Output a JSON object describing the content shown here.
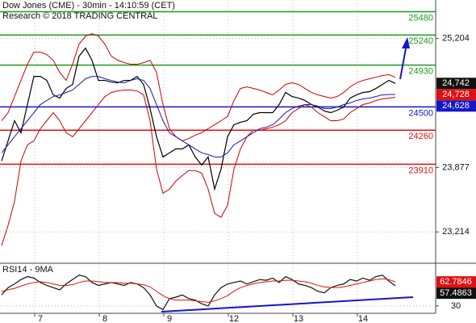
{
  "chart_data": [
    {
      "type": "line",
      "title": "Dow Jones (CME) - 30min - 14:10:59 (CET)",
      "subtitle": "Research © 2018 TRADING CENTRAL",
      "categories": [
        null,
        null,
        null,
        null,
        null,
        null,
        "7",
        null,
        null,
        null,
        null,
        null,
        null,
        null,
        null,
        null,
        "8",
        null,
        null,
        null,
        null,
        null,
        null,
        null,
        null,
        null,
        "9",
        null,
        null,
        null,
        null,
        null,
        null,
        null,
        null,
        null,
        "12",
        null,
        null,
        null,
        null,
        null,
        null,
        null,
        null,
        null,
        "13",
        null,
        null,
        null,
        null,
        null,
        null,
        null,
        null,
        null,
        "14",
        null,
        null,
        null,
        null,
        null
      ],
      "series": [
        {
          "color": "#000000",
          "values": [
            23944,
            24151,
            24358,
            24234,
            24524,
            24814,
            24814,
            24773,
            24624,
            24591,
            24690,
            24731,
            25022,
            25105,
            24980,
            24773,
            24773,
            24756,
            24748,
            24773,
            24773,
            24814,
            24731,
            24483,
            24193,
            23985,
            24027,
            24068,
            24068,
            24110,
            23985,
            23902,
            23985,
            23654,
            23861,
            24193,
            24317,
            24342,
            24358,
            24425,
            24441,
            24441,
            24441,
            24524,
            24649,
            24607,
            24591,
            24566,
            24524,
            24499,
            24458,
            24441,
            24466,
            24499,
            24591,
            24624,
            24649,
            24657,
            24690,
            24731,
            24773,
            24742
          ]
        },
        {
          "color": "#cc0000",
          "values": [
            24358,
            24441,
            24607,
            24773,
            24939,
            25063,
            25063,
            25038,
            24980,
            24856,
            24773,
            24939,
            25146,
            25229,
            25254,
            25229,
            25146,
            25022,
            24980,
            24955,
            24939,
            24939,
            24955,
            24980,
            24856,
            24524,
            24276,
            24193,
            24151,
            24176,
            24209,
            24234,
            24276,
            24317,
            24358,
            24400,
            24566,
            24690,
            24707,
            24690,
            24674,
            24649,
            24624,
            24674,
            24732,
            24748,
            24732,
            24690,
            24649,
            24624,
            24607,
            24591,
            24607,
            24649,
            24707,
            24748,
            24773,
            24790,
            24806,
            24823,
            24831,
            24806
          ]
        },
        {
          "color": "#cc0000",
          "values": [
            23074,
            23281,
            23529,
            23944,
            24110,
            24151,
            24276,
            24358,
            24441,
            24358,
            24234,
            24193,
            24276,
            24358,
            24441,
            24524,
            24607,
            24649,
            24665,
            24674,
            24674,
            24665,
            24624,
            24358,
            23861,
            23612,
            23654,
            23737,
            23795,
            23845,
            23845,
            23820,
            23654,
            23405,
            23364,
            23488,
            23861,
            24068,
            24193,
            24259,
            24259,
            24276,
            24292,
            24317,
            24358,
            24441,
            24483,
            24524,
            24499,
            24441,
            24400,
            24358,
            24358,
            24375,
            24441,
            24483,
            24524,
            24541,
            24566,
            24582,
            24591,
            24599
          ]
        },
        {
          "color": "#1a1aa8",
          "values": [
            24027,
            24110,
            24193,
            24276,
            24358,
            24441,
            24524,
            24566,
            24607,
            24624,
            24649,
            24674,
            24732,
            24790,
            24814,
            24814,
            24790,
            24773,
            24756,
            24748,
            24773,
            24790,
            24773,
            24690,
            24524,
            24358,
            24234,
            24193,
            24151,
            24110,
            24068,
            24027,
            24010,
            23985,
            23985,
            24027,
            24110,
            24151,
            24193,
            24234,
            24276,
            24292,
            24317,
            24375,
            24441,
            24483,
            24508,
            24524,
            24524,
            24508,
            24483,
            24483,
            24499,
            24524,
            24541,
            24566,
            24582,
            24591,
            24607,
            24624,
            24628,
            24628
          ]
        }
      ],
      "ylim": [
        22900,
        25600
      ],
      "yticks": [
        {
          "value": 23214,
          "label": "23,214"
        },
        {
          "value": 23877,
          "label": "23,877"
        },
        {
          "value": 25204,
          "label": "25,204"
        }
      ],
      "grid": true,
      "levels": [
        {
          "value": 25480,
          "color": "#1e9a1e"
        },
        {
          "value": 25240,
          "color": "#1e9a1e"
        },
        {
          "value": 24930,
          "color": "#1e9a1e"
        },
        {
          "value": 24500,
          "color": "#1515c8"
        },
        {
          "value": 24260,
          "color": "#e01010"
        },
        {
          "value": 23910,
          "color": "#e01010"
        }
      ],
      "price_tags": [
        {
          "value": 24742,
          "label": "24,742",
          "color": "#111111"
        },
        {
          "value": 24728,
          "label": "24,728",
          "color": "#e01010"
        },
        {
          "value": 24628,
          "label": "24,628",
          "color": "#1515c8"
        }
      ]
    },
    {
      "type": "line",
      "title": "RSI14 - 9MA",
      "series": [
        {
          "color": "#111111",
          "values": [
            45,
            55,
            60,
            66,
            70,
            68,
            62,
            58,
            55,
            52,
            60,
            66,
            72,
            70,
            62,
            58,
            60,
            62,
            60,
            58,
            62,
            60,
            55,
            45,
            30,
            25,
            40,
            42,
            45,
            40,
            38,
            33,
            30,
            45,
            55,
            60,
            62,
            64,
            60,
            63,
            66,
            65,
            68,
            62,
            70,
            66,
            60,
            58,
            55,
            50,
            48,
            55,
            58,
            60,
            66,
            64,
            68,
            65,
            70,
            72,
            64,
            57.4863
          ]
        },
        {
          "color": "#e01010",
          "values": [
            50,
            52,
            54,
            57,
            60,
            62,
            63,
            62,
            60,
            58,
            58,
            59,
            62,
            64,
            64,
            63,
            62,
            62,
            62,
            61,
            61,
            60,
            59,
            56,
            50,
            44,
            40,
            38,
            38,
            38,
            37,
            36,
            35,
            37,
            40,
            44,
            50,
            55,
            58,
            60,
            62,
            63,
            64,
            64,
            65,
            65,
            64,
            63,
            61,
            58,
            56,
            55,
            55,
            56,
            58,
            60,
            62,
            64,
            66,
            67,
            66,
            62.7846
          ]
        }
      ],
      "ylim": [
        20,
        86
      ],
      "yticks": [
        30
      ],
      "grid": true
    }
  ]
}
